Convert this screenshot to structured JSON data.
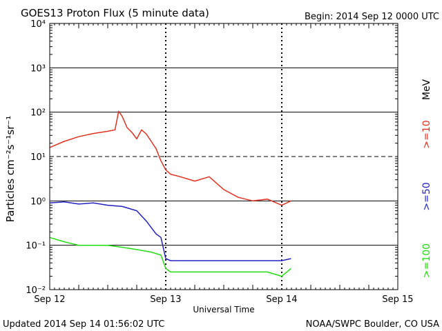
{
  "header": {
    "title": "GOES13 Proton Flux (5 minute data)",
    "begin": "Begin: 2014 Sep 12 0000 UTC"
  },
  "footer": {
    "updated": "Updated 2014 Sep 14 01:56:02 UTC",
    "source": "NOAA/SWPC Boulder, CO USA"
  },
  "colors": {
    "ge10": "#e0301e",
    "ge50": "#2020c0",
    "ge100": "#22dd11",
    "grid": "#000000"
  },
  "chart_data": {
    "type": "line",
    "title": "GOES13 Proton Flux (5 minute data)",
    "xlabel": "Universal Time",
    "ylabel": "Particles cm⁻²s⁻¹sr⁻¹",
    "yscale": "log",
    "ylim": [
      0.01,
      10000
    ],
    "xlim": [
      "2014-09-12T00:00",
      "2014-09-15T00:00"
    ],
    "x_ticks": [
      "Sep 12",
      "Sep 13",
      "Sep 14",
      "Sep 15"
    ],
    "y_ticks": [
      "10⁴",
      "10³",
      "10²",
      "10¹",
      "10⁰",
      "10⁻¹",
      "10⁻²"
    ],
    "right_labels": {
      "unit": "MeV",
      "ge10": ">=10",
      "ge50": ">=50",
      "ge100": ">=100"
    },
    "grid": true,
    "series": [
      {
        "name": ">=10",
        "color": "#e0301e",
        "x": [
          "2014-09-12T00:00",
          "2014-09-12T03:00",
          "2014-09-12T06:00",
          "2014-09-12T09:00",
          "2014-09-12T12:00",
          "2014-09-12T13:30",
          "2014-09-12T14:15",
          "2014-09-12T15:00",
          "2014-09-12T16:00",
          "2014-09-12T17:00",
          "2014-09-12T18:00",
          "2014-09-12T19:00",
          "2014-09-12T20:00",
          "2014-09-12T21:00",
          "2014-09-12T22:00",
          "2014-09-12T23:00",
          "2014-09-13T00:00",
          "2014-09-13T01:00",
          "2014-09-13T03:00",
          "2014-09-13T06:00",
          "2014-09-13T09:00",
          "2014-09-13T12:00",
          "2014-09-13T15:00",
          "2014-09-13T18:00",
          "2014-09-13T21:00",
          "2014-09-14T00:00",
          "2014-09-14T01:55"
        ],
        "values": [
          16,
          22,
          28,
          33,
          37,
          40,
          105,
          80,
          45,
          35,
          25,
          40,
          32,
          22,
          15,
          8,
          5,
          4,
          3.5,
          2.8,
          3.5,
          1.8,
          1.2,
          1.0,
          1.1,
          0.8,
          1.0
        ]
      },
      {
        "name": ">=50",
        "color": "#2020c0",
        "x": [
          "2014-09-12T00:00",
          "2014-09-12T03:00",
          "2014-09-12T06:00",
          "2014-09-12T09:00",
          "2014-09-12T12:00",
          "2014-09-12T15:00",
          "2014-09-12T18:00",
          "2014-09-12T20:00",
          "2014-09-12T21:00",
          "2014-09-12T22:00",
          "2014-09-12T23:00",
          "2014-09-13T00:00",
          "2014-09-13T01:00",
          "2014-09-13T06:00",
          "2014-09-13T12:00",
          "2014-09-13T18:00",
          "2014-09-13T21:00",
          "2014-09-14T00:00",
          "2014-09-14T01:55"
        ],
        "values": [
          0.9,
          0.95,
          0.85,
          0.9,
          0.8,
          0.75,
          0.6,
          0.35,
          0.25,
          0.18,
          0.15,
          0.05,
          0.045,
          0.045,
          0.045,
          0.045,
          0.045,
          0.045,
          0.05
        ]
      },
      {
        "name": ">=100",
        "color": "#22dd11",
        "x": [
          "2014-09-12T00:00",
          "2014-09-12T03:00",
          "2014-09-12T06:00",
          "2014-09-12T09:00",
          "2014-09-12T12:00",
          "2014-09-12T15:00",
          "2014-09-12T18:00",
          "2014-09-12T21:00",
          "2014-09-12T23:00",
          "2014-09-13T00:00",
          "2014-09-13T01:00",
          "2014-09-13T06:00",
          "2014-09-13T12:00",
          "2014-09-13T18:00",
          "2014-09-13T21:00",
          "2014-09-14T00:00",
          "2014-09-14T01:55"
        ],
        "values": [
          0.15,
          0.12,
          0.1,
          0.1,
          0.1,
          0.09,
          0.08,
          0.07,
          0.06,
          0.03,
          0.025,
          0.025,
          0.025,
          0.025,
          0.025,
          0.02,
          0.03
        ]
      }
    ]
  }
}
